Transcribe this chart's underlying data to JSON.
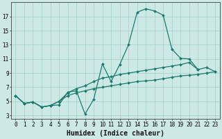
{
  "xlabel": "Humidex (Indice chaleur)",
  "bg_color": "#cce9e5",
  "line_color": "#1a7a6e",
  "grid_color": "#aad4cf",
  "line1_y": [
    5.8,
    4.7,
    4.9,
    4.2,
    4.4,
    4.5,
    6.3,
    6.5,
    3.2,
    5.3,
    10.3,
    7.8,
    10.2,
    13.0,
    17.6,
    18.1,
    17.8,
    17.2,
    12.4,
    11.1,
    11.0,
    9.5,
    null,
    null
  ],
  "line2_y": [
    5.8,
    4.7,
    4.9,
    4.2,
    4.4,
    5.0,
    6.2,
    6.8,
    7.2,
    7.8,
    8.3,
    8.5,
    8.8,
    9.0,
    9.2,
    9.4,
    9.6,
    9.8,
    10.0,
    10.2,
    10.5,
    9.5,
    9.8,
    9.2
  ],
  "line3_y": [
    5.8,
    4.7,
    4.9,
    4.2,
    4.4,
    5.0,
    5.8,
    6.2,
    6.5,
    6.8,
    7.0,
    7.2,
    7.4,
    7.6,
    7.8,
    7.9,
    8.0,
    8.2,
    8.4,
    8.6,
    8.7,
    8.8,
    9.0,
    9.2
  ],
  "xlim": [
    0,
    23
  ],
  "ylim": [
    2.5,
    19.0
  ],
  "yticks": [
    3,
    5,
    7,
    9,
    11,
    13,
    15,
    17
  ],
  "xtick_positions": [
    0,
    1,
    2,
    3,
    4,
    5,
    6,
    7,
    8,
    9,
    10,
    11,
    12,
    13,
    14,
    15,
    16,
    17,
    18,
    19,
    20,
    21,
    22,
    23
  ],
  "xtick_labels_short": [
    "0",
    "1",
    "2",
    "3",
    "4",
    "5",
    "6",
    "7",
    "8",
    "9"
  ],
  "xtick_labels_long": "10111213141516171819202122 23",
  "fontsize_ticks": 5.5,
  "fontsize_xlabel": 7,
  "markersize": 2.0
}
